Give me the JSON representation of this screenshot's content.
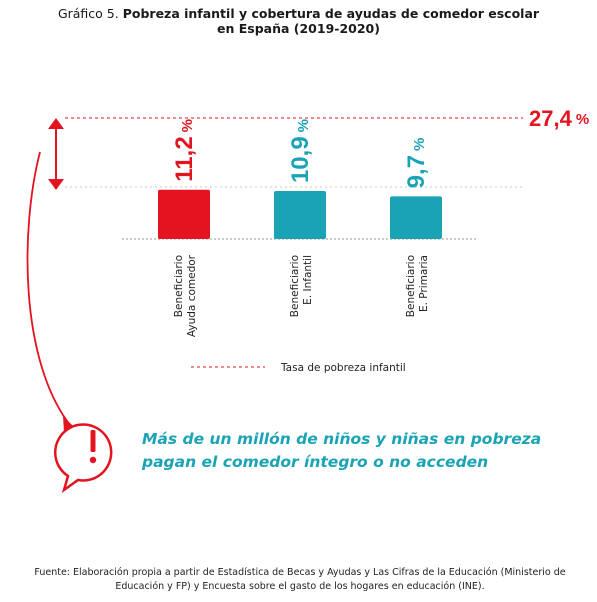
{
  "title": {
    "prefix": "Gráfico 5.",
    "bold_line1": "Pobreza infantil y cobertura de ayudas de comedor escolar",
    "bold_line2": "en España (2019-2020)"
  },
  "chart_data": {
    "type": "bar",
    "categories": [
      "Beneficiario\nAyuda comedor",
      "Beneficiario\nE. Infantil",
      "Beneficiario\nE. Primaria"
    ],
    "values": [
      11.2,
      10.9,
      9.7
    ],
    "value_labels": [
      "11,2",
      "10,9",
      "9,7"
    ],
    "unit": "%",
    "colors": [
      "#e3141f",
      "#1aa3b5",
      "#1aa3b5"
    ],
    "reference_line": {
      "value": 27.4,
      "label": "27,4",
      "unit": "%",
      "color": "#e3141f"
    },
    "legend": {
      "label": "Tasa de pobreza infantil",
      "placement": "bottom"
    },
    "grid": false
  },
  "note": {
    "line1": "Más de un millón de niños y niñas en pobreza",
    "line2": "pagan el comedor íntegro o no acceden",
    "icon": "alert-bubble-icon"
  },
  "source": "Fuente: Elaboración propia a partir de Estadística de Becas y Ayudas y Las Cifras de la Educación (Ministerio de Educación y FP) y Encuesta sobre el gasto de los hogares en educación (INE)."
}
